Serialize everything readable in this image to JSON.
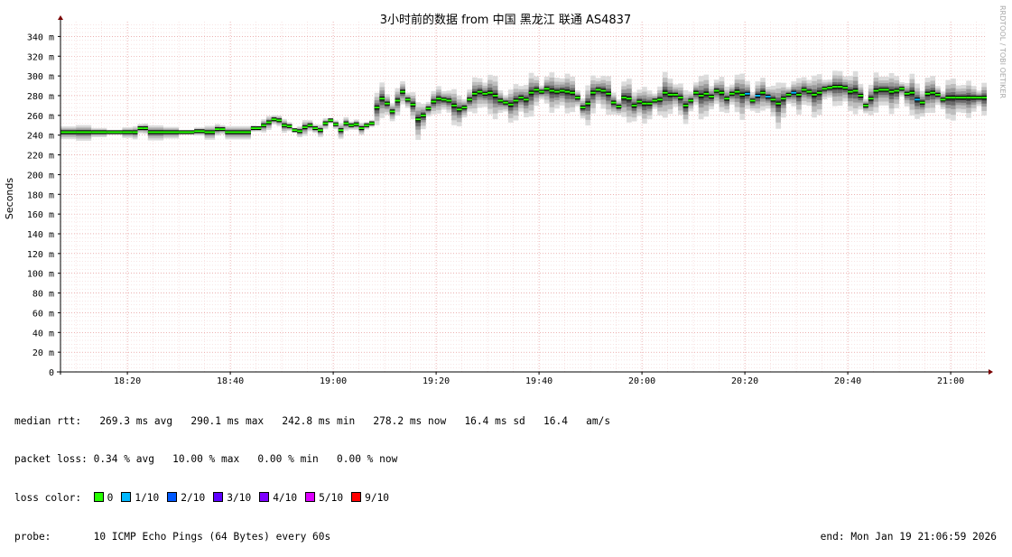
{
  "watermark": "RRDTOOL / TOBI OETIKER",
  "stats": {
    "median_label": "median rtt:",
    "median_values": "269.3 ms avg   290.1 ms max   242.8 ms min   278.2 ms now   16.4 ms sd   16.4   am/s",
    "loss_label": "packet loss:",
    "loss_values": "0.34 % avg   10.00 % max   0.00 % min   0.00 % now",
    "color_label": "loss color:",
    "loss_colors": [
      {
        "label": "0",
        "color": "#26ff00"
      },
      {
        "label": "1/10",
        "color": "#00b8ff"
      },
      {
        "label": "2/10",
        "color": "#0059ff"
      },
      {
        "label": "3/10",
        "color": "#5e00ff"
      },
      {
        "label": "4/10",
        "color": "#7e00ff"
      },
      {
        "label": "5/10",
        "color": "#dd00ff"
      },
      {
        "label": "9/10",
        "color": "#ff0000"
      }
    ],
    "probe_label": "probe:",
    "probe_value": "10 ICMP Echo Pings (64 Bytes) every 60s",
    "end_text": "end: Mon Jan 19 21:06:59 2026"
  },
  "chart_data": {
    "type": "area",
    "title": "3小时前的数据 from 中国 黑龙江 联通 AS4837",
    "ylabel": "Seconds",
    "xlabel": "",
    "ylim": [
      0,
      355
    ],
    "y_ticks": [
      0,
      20,
      40,
      60,
      80,
      100,
      120,
      140,
      160,
      180,
      200,
      220,
      240,
      260,
      280,
      300,
      320,
      340
    ],
    "y_tick_labels": [
      "0",
      "20 m",
      "40 m",
      "60 m",
      "80 m",
      "100 m",
      "120 m",
      "140 m",
      "160 m",
      "180 m",
      "200 m",
      "220 m",
      "240 m",
      "260 m",
      "280 m",
      "300 m",
      "320 m",
      "340 m"
    ],
    "x_tick_labels": [
      "18:20",
      "18:40",
      "19:00",
      "19:20",
      "19:40",
      "20:00",
      "20:20",
      "20:40",
      "21:00"
    ],
    "x_tick_minutes": [
      1100,
      1120,
      1140,
      1160,
      1180,
      1200,
      1220,
      1240,
      1260
    ],
    "x_range_minutes": [
      1087,
      1267
    ],
    "grid": true,
    "series": [
      {
        "name": "median rtt",
        "points": [
          [
            1087,
            243
          ],
          [
            1090,
            243
          ],
          [
            1093,
            243
          ],
          [
            1096,
            243
          ],
          [
            1099,
            243
          ],
          [
            1101,
            243
          ],
          [
            1102,
            247
          ],
          [
            1103,
            247
          ],
          [
            1104,
            243
          ],
          [
            1107,
            243
          ],
          [
            1110,
            243
          ],
          [
            1113,
            244
          ],
          [
            1115,
            243
          ],
          [
            1117,
            246
          ],
          [
            1118,
            246
          ],
          [
            1119,
            243
          ],
          [
            1122,
            243
          ],
          [
            1124,
            247
          ],
          [
            1125,
            247
          ],
          [
            1126,
            250
          ],
          [
            1127,
            253
          ],
          [
            1128,
            256
          ],
          [
            1129,
            255
          ],
          [
            1130,
            250
          ],
          [
            1131,
            249
          ],
          [
            1132,
            245
          ],
          [
            1133,
            244
          ],
          [
            1134,
            248
          ],
          [
            1135,
            250
          ],
          [
            1136,
            247
          ],
          [
            1137,
            245
          ],
          [
            1138,
            252
          ],
          [
            1139,
            255
          ],
          [
            1140,
            251
          ],
          [
            1141,
            245
          ],
          [
            1142,
            252
          ],
          [
            1143,
            250
          ],
          [
            1144,
            251
          ],
          [
            1145,
            247
          ],
          [
            1146,
            250
          ],
          [
            1147,
            252
          ],
          [
            1148,
            268
          ],
          [
            1149,
            277
          ],
          [
            1150,
            272
          ],
          [
            1151,
            264
          ],
          [
            1152,
            275
          ],
          [
            1153,
            284
          ],
          [
            1154,
            276
          ],
          [
            1155,
            271
          ],
          [
            1156,
            256
          ],
          [
            1157,
            260
          ],
          [
            1158,
            267
          ],
          [
            1159,
            274
          ],
          [
            1160,
            277
          ],
          [
            1161,
            276
          ],
          [
            1162,
            275
          ],
          [
            1163,
            270
          ],
          [
            1164,
            266
          ],
          [
            1165,
            268
          ],
          [
            1166,
            276
          ],
          [
            1167,
            282
          ],
          [
            1168,
            284
          ],
          [
            1169,
            282
          ],
          [
            1170,
            283
          ],
          [
            1171,
            280
          ],
          [
            1172,
            275
          ],
          [
            1173,
            273
          ],
          [
            1174,
            271
          ],
          [
            1175,
            275
          ],
          [
            1176,
            278
          ],
          [
            1177,
            276
          ],
          [
            1178,
            283
          ],
          [
            1179,
            286
          ],
          [
            1180,
            284
          ],
          [
            1181,
            287
          ],
          [
            1182,
            285
          ],
          [
            1183,
            284
          ],
          [
            1184,
            285
          ],
          [
            1185,
            284
          ],
          [
            1186,
            283
          ],
          [
            1187,
            278
          ],
          [
            1188,
            268
          ],
          [
            1189,
            272
          ],
          [
            1190,
            283
          ],
          [
            1191,
            286
          ],
          [
            1192,
            285
          ],
          [
            1193,
            282
          ],
          [
            1194,
            273
          ],
          [
            1195,
            269
          ],
          [
            1196,
            278
          ],
          [
            1197,
            277
          ],
          [
            1198,
            270
          ],
          [
            1199,
            274
          ],
          [
            1200,
            272
          ],
          [
            1201,
            272
          ],
          [
            1202,
            275
          ],
          [
            1203,
            276
          ],
          [
            1204,
            283
          ],
          [
            1205,
            281
          ],
          [
            1206,
            281
          ],
          [
            1207,
            278
          ],
          [
            1208,
            270
          ],
          [
            1209,
            275
          ],
          [
            1210,
            283
          ],
          [
            1211,
            280
          ],
          [
            1212,
            282
          ],
          [
            1213,
            279
          ],
          [
            1214,
            285
          ],
          [
            1215,
            283
          ],
          [
            1216,
            277
          ],
          [
            1217,
            282
          ],
          [
            1218,
            284
          ],
          [
            1219,
            281
          ],
          [
            1220,
            282
          ],
          [
            1221,
            275
          ],
          [
            1222,
            280
          ],
          [
            1223,
            283
          ],
          [
            1224,
            279
          ],
          [
            1225,
            276
          ],
          [
            1226,
            272
          ],
          [
            1227,
            277
          ],
          [
            1228,
            281
          ],
          [
            1229,
            283
          ],
          [
            1230,
            281
          ],
          [
            1231,
            286
          ],
          [
            1232,
            284
          ],
          [
            1233,
            281
          ],
          [
            1234,
            283
          ],
          [
            1235,
            287
          ],
          [
            1236,
            288
          ],
          [
            1237,
            289
          ],
          [
            1238,
            289
          ],
          [
            1239,
            288
          ],
          [
            1240,
            284
          ],
          [
            1241,
            285
          ],
          [
            1242,
            280
          ],
          [
            1243,
            270
          ],
          [
            1244,
            277
          ],
          [
            1245,
            285
          ],
          [
            1246,
            286
          ],
          [
            1247,
            286
          ],
          [
            1248,
            284
          ],
          [
            1249,
            285
          ],
          [
            1250,
            287
          ],
          [
            1251,
            282
          ],
          [
            1252,
            283
          ],
          [
            1253,
            276
          ],
          [
            1254,
            273
          ],
          [
            1255,
            282
          ],
          [
            1256,
            283
          ],
          [
            1257,
            281
          ],
          [
            1258,
            276
          ],
          [
            1259,
            278
          ],
          [
            1260,
            278
          ],
          [
            1261,
            278
          ],
          [
            1262,
            278
          ],
          [
            1263,
            278
          ],
          [
            1264,
            278
          ],
          [
            1265,
            278
          ],
          [
            1266,
            278
          ],
          [
            1267,
            278
          ]
        ]
      }
    ],
    "loss_segments": [
      {
        "loss": "1/10",
        "x": [
          1220,
          1222,
          1224,
          1229,
          1253
        ]
      }
    ],
    "smoke_band": {
      "description": "grey percentile bands around the median",
      "inner_color": "#404040",
      "outer_color": "#d9d9d9"
    }
  }
}
